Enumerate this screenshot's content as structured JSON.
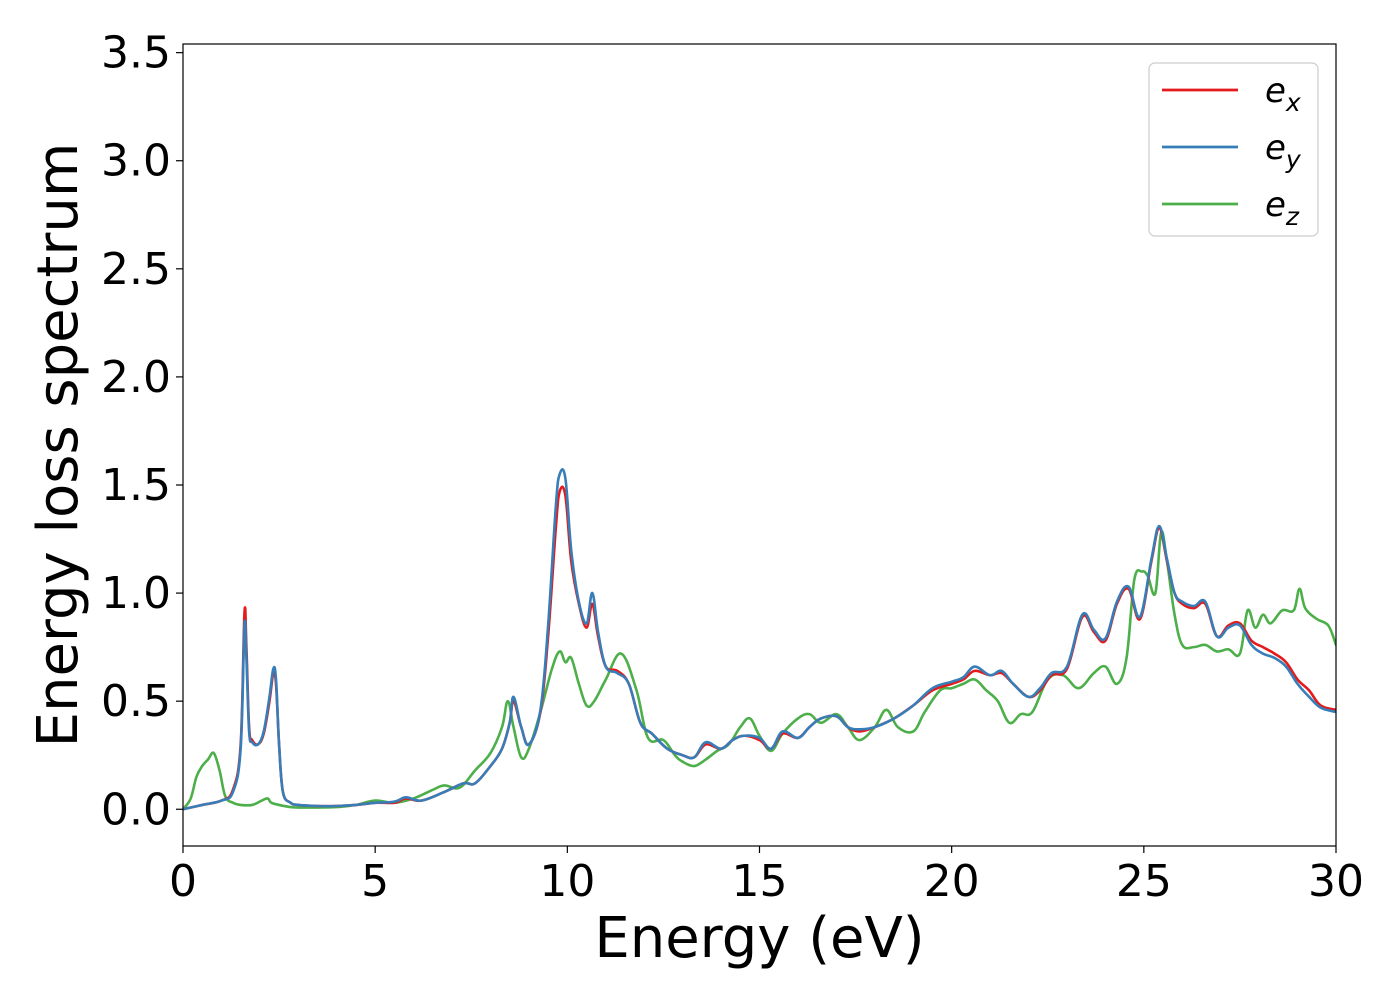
{
  "chart_data": {
    "type": "line",
    "title": "",
    "xlabel": "Energy (eV)",
    "ylabel": "Energy loss spectrum",
    "xlim": [
      0,
      30
    ],
    "ylim": [
      -0.17,
      3.54
    ],
    "xticks": [
      0,
      5,
      10,
      15,
      20,
      25,
      30
    ],
    "xtick_labels": [
      "0",
      "5",
      "10",
      "15",
      "20",
      "25",
      "30"
    ],
    "yticks": [
      0.0,
      0.5,
      1.0,
      1.5,
      2.0,
      2.5,
      3.0,
      3.5
    ],
    "ytick_labels": [
      "0.0",
      "0.5",
      "1.0",
      "1.5",
      "2.0",
      "2.5",
      "3.0",
      "3.5"
    ],
    "grid": false,
    "legend_position": "top-right",
    "series": [
      {
        "name": "e_x",
        "legend": {
          "base": "e",
          "sub": "x"
        },
        "color": "#e41a1c",
        "x": [
          0,
          0.5,
          1.0,
          1.3,
          1.5,
          1.6,
          1.65,
          1.72,
          1.8,
          1.95,
          2.1,
          2.25,
          2.35,
          2.42,
          2.5,
          2.6,
          2.8,
          3.0,
          3.5,
          4.0,
          4.5,
          5.0,
          5.5,
          5.8,
          6.2,
          6.8,
          7.3,
          7.6,
          8.0,
          8.3,
          8.5,
          8.6,
          8.8,
          9.0,
          9.3,
          9.5,
          9.7,
          9.8,
          9.95,
          10.1,
          10.3,
          10.5,
          10.65,
          10.8,
          11.0,
          11.3,
          11.6,
          11.9,
          12.2,
          12.6,
          13.0,
          13.3,
          13.6,
          14.0,
          14.3,
          14.6,
          15.0,
          15.3,
          15.6,
          16.0,
          16.3,
          16.6,
          17.0,
          17.3,
          17.6,
          18.0,
          18.5,
          19.0,
          19.5,
          20.0,
          20.3,
          20.6,
          21.0,
          21.3,
          21.6,
          22.0,
          22.3,
          22.6,
          23.0,
          23.4,
          23.7,
          24.0,
          24.3,
          24.6,
          24.9,
          25.2,
          25.4,
          25.6,
          25.8,
          26.0,
          26.3,
          26.6,
          26.9,
          27.2,
          27.5,
          27.8,
          28.1,
          28.4,
          28.7,
          29.0,
          29.3,
          29.6,
          30.0
        ],
        "values": [
          0.0,
          0.02,
          0.04,
          0.09,
          0.3,
          0.91,
          0.75,
          0.38,
          0.32,
          0.3,
          0.35,
          0.5,
          0.63,
          0.58,
          0.3,
          0.08,
          0.03,
          0.02,
          0.015,
          0.015,
          0.02,
          0.03,
          0.03,
          0.05,
          0.04,
          0.08,
          0.12,
          0.12,
          0.2,
          0.28,
          0.4,
          0.5,
          0.38,
          0.3,
          0.45,
          0.8,
          1.3,
          1.47,
          1.45,
          1.15,
          0.95,
          0.84,
          0.95,
          0.8,
          0.66,
          0.64,
          0.58,
          0.4,
          0.35,
          0.28,
          0.25,
          0.24,
          0.3,
          0.28,
          0.32,
          0.34,
          0.32,
          0.28,
          0.35,
          0.33,
          0.38,
          0.42,
          0.43,
          0.38,
          0.36,
          0.38,
          0.42,
          0.48,
          0.55,
          0.58,
          0.6,
          0.64,
          0.62,
          0.63,
          0.58,
          0.52,
          0.55,
          0.62,
          0.65,
          0.89,
          0.82,
          0.78,
          0.95,
          1.02,
          0.88,
          1.15,
          1.3,
          1.15,
          1.0,
          0.95,
          0.93,
          0.95,
          0.8,
          0.85,
          0.86,
          0.78,
          0.75,
          0.72,
          0.68,
          0.6,
          0.55,
          0.48,
          0.46
        ]
      },
      {
        "name": "e_y",
        "legend": {
          "base": "e",
          "sub": "y"
        },
        "color": "#377eb8",
        "x": [
          0,
          0.5,
          1.0,
          1.3,
          1.5,
          1.6,
          1.65,
          1.72,
          1.8,
          1.95,
          2.1,
          2.25,
          2.35,
          2.42,
          2.5,
          2.6,
          2.8,
          3.0,
          3.5,
          4.0,
          4.5,
          5.0,
          5.5,
          5.8,
          6.2,
          6.8,
          7.3,
          7.6,
          8.0,
          8.3,
          8.5,
          8.6,
          8.8,
          9.0,
          9.3,
          9.5,
          9.7,
          9.8,
          9.95,
          10.1,
          10.3,
          10.5,
          10.65,
          10.8,
          11.0,
          11.3,
          11.6,
          11.9,
          12.2,
          12.6,
          13.0,
          13.3,
          13.6,
          14.0,
          14.3,
          14.6,
          15.0,
          15.3,
          15.6,
          16.0,
          16.3,
          16.6,
          17.0,
          17.3,
          17.6,
          18.0,
          18.5,
          19.0,
          19.5,
          20.0,
          20.3,
          20.6,
          21.0,
          21.3,
          21.6,
          22.0,
          22.3,
          22.6,
          23.0,
          23.4,
          23.7,
          24.0,
          24.3,
          24.6,
          24.9,
          25.2,
          25.4,
          25.6,
          25.8,
          26.0,
          26.3,
          26.6,
          26.9,
          27.2,
          27.5,
          27.8,
          28.1,
          28.4,
          28.7,
          29.0,
          29.3,
          29.6,
          30.0
        ],
        "values": [
          0.0,
          0.02,
          0.04,
          0.08,
          0.28,
          0.85,
          0.7,
          0.36,
          0.31,
          0.3,
          0.36,
          0.52,
          0.65,
          0.6,
          0.3,
          0.08,
          0.03,
          0.02,
          0.015,
          0.015,
          0.02,
          0.03,
          0.035,
          0.055,
          0.04,
          0.08,
          0.12,
          0.12,
          0.2,
          0.28,
          0.4,
          0.52,
          0.38,
          0.3,
          0.46,
          0.85,
          1.4,
          1.55,
          1.53,
          1.2,
          0.96,
          0.86,
          1.0,
          0.82,
          0.66,
          0.63,
          0.58,
          0.4,
          0.35,
          0.28,
          0.25,
          0.24,
          0.31,
          0.28,
          0.32,
          0.34,
          0.33,
          0.28,
          0.36,
          0.33,
          0.38,
          0.42,
          0.43,
          0.38,
          0.37,
          0.38,
          0.42,
          0.48,
          0.56,
          0.59,
          0.61,
          0.66,
          0.62,
          0.64,
          0.58,
          0.52,
          0.56,
          0.63,
          0.66,
          0.9,
          0.83,
          0.79,
          0.96,
          1.03,
          0.89,
          1.16,
          1.31,
          1.16,
          1.0,
          0.96,
          0.94,
          0.96,
          0.8,
          0.84,
          0.85,
          0.76,
          0.72,
          0.7,
          0.66,
          0.58,
          0.52,
          0.47,
          0.45
        ]
      },
      {
        "name": "e_z",
        "legend": {
          "base": "e",
          "sub": "z"
        },
        "color": "#4daf4a",
        "x": [
          0,
          0.2,
          0.35,
          0.5,
          0.65,
          0.8,
          0.95,
          1.1,
          1.3,
          1.5,
          1.8,
          2.05,
          2.2,
          2.3,
          2.5,
          2.8,
          3.0,
          3.5,
          4.0,
          4.5,
          5.0,
          5.5,
          6.0,
          6.5,
          6.8,
          7.2,
          7.6,
          8.0,
          8.3,
          8.45,
          8.6,
          8.8,
          9.0,
          9.3,
          9.6,
          9.8,
          9.95,
          10.1,
          10.3,
          10.5,
          10.7,
          11.0,
          11.4,
          11.8,
          12.1,
          12.5,
          12.8,
          13.0,
          13.3,
          13.6,
          13.9,
          14.2,
          14.5,
          14.75,
          15.0,
          15.3,
          15.6,
          16.0,
          16.3,
          16.6,
          17.0,
          17.3,
          17.6,
          18.0,
          18.3,
          18.6,
          19.0,
          19.3,
          19.7,
          20.0,
          20.3,
          20.6,
          20.9,
          21.2,
          21.5,
          21.8,
          22.1,
          22.5,
          22.9,
          23.3,
          23.7,
          24.0,
          24.3,
          24.55,
          24.75,
          24.95,
          25.1,
          25.3,
          25.45,
          25.6,
          25.8,
          26.0,
          26.3,
          26.6,
          26.9,
          27.2,
          27.5,
          27.7,
          27.9,
          28.1,
          28.3,
          28.6,
          28.9,
          29.05,
          29.2,
          29.5,
          29.8,
          30.0
        ],
        "values": [
          0.0,
          0.05,
          0.15,
          0.2,
          0.23,
          0.26,
          0.18,
          0.06,
          0.03,
          0.02,
          0.02,
          0.04,
          0.05,
          0.03,
          0.02,
          0.01,
          0.008,
          0.008,
          0.01,
          0.02,
          0.04,
          0.03,
          0.05,
          0.09,
          0.11,
          0.1,
          0.18,
          0.26,
          0.38,
          0.5,
          0.38,
          0.24,
          0.28,
          0.45,
          0.65,
          0.73,
          0.68,
          0.7,
          0.58,
          0.48,
          0.5,
          0.6,
          0.72,
          0.55,
          0.33,
          0.32,
          0.25,
          0.22,
          0.2,
          0.23,
          0.27,
          0.3,
          0.38,
          0.42,
          0.34,
          0.27,
          0.35,
          0.42,
          0.44,
          0.4,
          0.44,
          0.38,
          0.32,
          0.38,
          0.46,
          0.38,
          0.36,
          0.45,
          0.55,
          0.56,
          0.58,
          0.6,
          0.55,
          0.5,
          0.4,
          0.44,
          0.45,
          0.6,
          0.62,
          0.56,
          0.63,
          0.66,
          0.58,
          0.7,
          1.06,
          1.1,
          1.08,
          1.0,
          1.28,
          1.15,
          0.9,
          0.76,
          0.75,
          0.76,
          0.73,
          0.74,
          0.72,
          0.92,
          0.84,
          0.9,
          0.86,
          0.92,
          0.92,
          1.02,
          0.93,
          0.88,
          0.85,
          0.76
        ]
      }
    ]
  }
}
